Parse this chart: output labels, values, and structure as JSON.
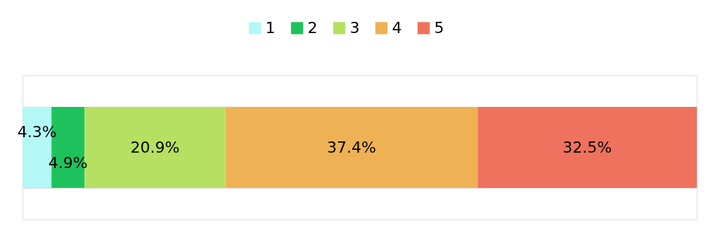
{
  "chart_data": {
    "type": "bar",
    "orientation": "horizontal",
    "stacked": true,
    "categories": [
      null
    ],
    "series": [
      {
        "name": "1",
        "color": "#b3f7f7",
        "values": [
          4.3
        ],
        "value_labels": [
          "4.3%"
        ]
      },
      {
        "name": "2",
        "color": "#1ec25c",
        "values": [
          4.9
        ],
        "value_labels": [
          "4.9%"
        ]
      },
      {
        "name": "3",
        "color": "#b5e061",
        "values": [
          20.9
        ],
        "value_labels": [
          "20.9%"
        ]
      },
      {
        "name": "4",
        "color": "#eeb255",
        "values": [
          37.4
        ],
        "value_labels": [
          "37.4%"
        ]
      },
      {
        "name": "5",
        "color": "#ee725e",
        "values": [
          32.5
        ],
        "value_labels": [
          "32.5%"
        ]
      }
    ],
    "xlim": [
      0,
      100
    ],
    "tick_labels": false,
    "legend": "top"
  }
}
